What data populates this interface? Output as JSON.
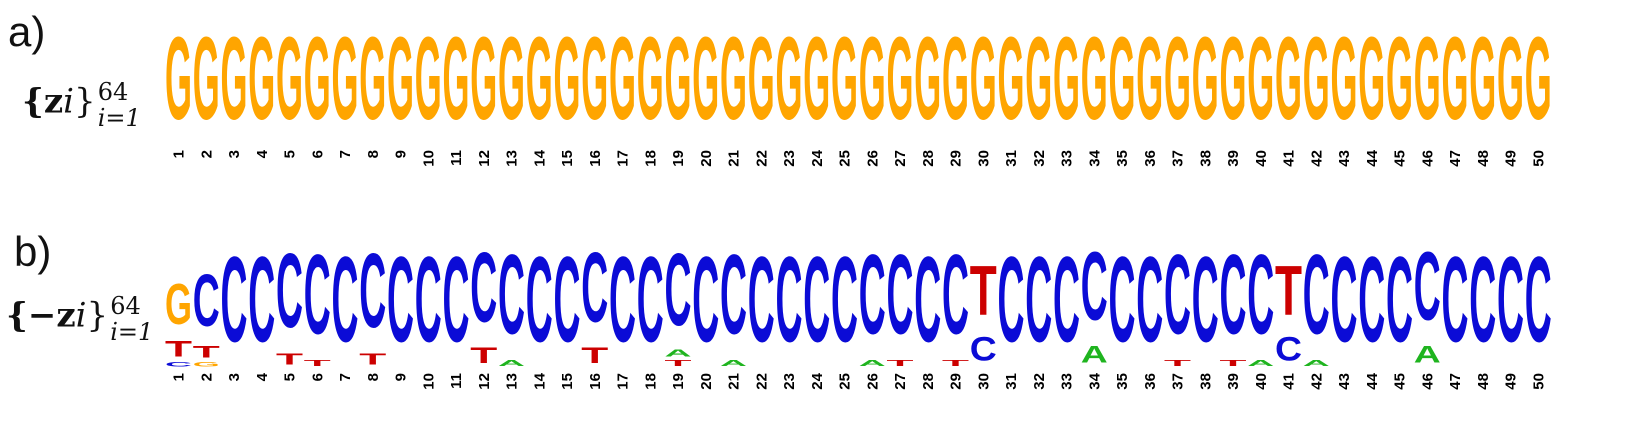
{
  "panels": {
    "a": {
      "letter": "a)",
      "label_main": "{z",
      "label_idx": "i",
      "label_close": "}",
      "label_sup": "64",
      "label_sub": "i=1"
    },
    "b": {
      "letter": "b)",
      "label_main": "{−z",
      "label_idx": "i",
      "label_close": "}",
      "label_sup": "64",
      "label_sub": "i=1"
    }
  },
  "colors": {
    "A": "#1fb41f",
    "C": "#0b0bd6",
    "G": "#ffa500",
    "T": "#cc0000"
  },
  "chart_data": [
    {
      "type": "sequence-logo",
      "panel": "a",
      "positions": [
        "1",
        "2",
        "3",
        "4",
        "5",
        "6",
        "7",
        "8",
        "9",
        "10",
        "11",
        "12",
        "13",
        "14",
        "15",
        "16",
        "17",
        "18",
        "19",
        "20",
        "21",
        "22",
        "23",
        "24",
        "25",
        "26",
        "27",
        "28",
        "29",
        "30",
        "31",
        "32",
        "33",
        "34",
        "35",
        "36",
        "37",
        "38",
        "39",
        "40",
        "41",
        "42",
        "43",
        "44",
        "45",
        "46",
        "47",
        "48",
        "49",
        "50"
      ],
      "stacks": [
        [
          [
            "G",
            1.0
          ]
        ],
        [
          [
            "G",
            1.0
          ]
        ],
        [
          [
            "G",
            1.0
          ]
        ],
        [
          [
            "G",
            1.0
          ]
        ],
        [
          [
            "G",
            1.0
          ]
        ],
        [
          [
            "G",
            1.0
          ]
        ],
        [
          [
            "G",
            1.0
          ]
        ],
        [
          [
            "G",
            1.0
          ]
        ],
        [
          [
            "G",
            1.0
          ]
        ],
        [
          [
            "G",
            1.0
          ]
        ],
        [
          [
            "G",
            1.0
          ]
        ],
        [
          [
            "G",
            1.0
          ]
        ],
        [
          [
            "G",
            1.0
          ]
        ],
        [
          [
            "G",
            1.0
          ]
        ],
        [
          [
            "G",
            1.0
          ]
        ],
        [
          [
            "G",
            1.0
          ]
        ],
        [
          [
            "G",
            1.0
          ]
        ],
        [
          [
            "G",
            1.0
          ]
        ],
        [
          [
            "G",
            1.0
          ]
        ],
        [
          [
            "G",
            1.0
          ]
        ],
        [
          [
            "G",
            1.0
          ]
        ],
        [
          [
            "G",
            1.0
          ]
        ],
        [
          [
            "G",
            1.0
          ]
        ],
        [
          [
            "G",
            1.0
          ]
        ],
        [
          [
            "G",
            1.0
          ]
        ],
        [
          [
            "G",
            1.0
          ]
        ],
        [
          [
            "G",
            1.0
          ]
        ],
        [
          [
            "G",
            1.0
          ]
        ],
        [
          [
            "G",
            1.0
          ]
        ],
        [
          [
            "G",
            1.0
          ]
        ],
        [
          [
            "G",
            1.0
          ]
        ],
        [
          [
            "G",
            1.0
          ]
        ],
        [
          [
            "G",
            1.0
          ]
        ],
        [
          [
            "G",
            1.0
          ]
        ],
        [
          [
            "G",
            1.0
          ]
        ],
        [
          [
            "G",
            1.0
          ]
        ],
        [
          [
            "G",
            1.0
          ]
        ],
        [
          [
            "G",
            1.0
          ]
        ],
        [
          [
            "G",
            1.0
          ]
        ],
        [
          [
            "G",
            1.0
          ]
        ],
        [
          [
            "G",
            1.0
          ]
        ],
        [
          [
            "G",
            1.0
          ]
        ],
        [
          [
            "G",
            1.0
          ]
        ],
        [
          [
            "G",
            1.0
          ]
        ],
        [
          [
            "G",
            1.0
          ]
        ],
        [
          [
            "G",
            1.0
          ]
        ],
        [
          [
            "G",
            1.0
          ]
        ],
        [
          [
            "G",
            1.0
          ]
        ],
        [
          [
            "G",
            1.0
          ]
        ],
        [
          [
            "G",
            1.0
          ]
        ]
      ]
    },
    {
      "type": "sequence-logo",
      "panel": "b",
      "positions": [
        "1",
        "2",
        "3",
        "4",
        "5",
        "6",
        "7",
        "8",
        "9",
        "10",
        "11",
        "12",
        "13",
        "14",
        "15",
        "16",
        "17",
        "18",
        "19",
        "20",
        "21",
        "22",
        "23",
        "24",
        "25",
        "26",
        "27",
        "28",
        "29",
        "30",
        "31",
        "32",
        "33",
        "34",
        "35",
        "36",
        "37",
        "38",
        "39",
        "40",
        "41",
        "42",
        "43",
        "44",
        "45",
        "46",
        "47",
        "48",
        "49",
        "50"
      ],
      "stacks": [
        [
          [
            "C",
            0.05
          ],
          [
            "T",
            0.18
          ],
          [
            "G",
            0.47
          ]
        ],
        [
          [
            "G",
            0.05
          ],
          [
            "T",
            0.14
          ],
          [
            "C",
            0.61
          ]
        ],
        [
          [
            "C",
            1.0
          ]
        ],
        [
          [
            "C",
            1.0
          ]
        ],
        [
          [
            "T",
            0.13
          ],
          [
            "C",
            0.87
          ]
        ],
        [
          [
            "T",
            0.07
          ],
          [
            "C",
            0.93
          ]
        ],
        [
          [
            "C",
            1.0
          ]
        ],
        [
          [
            "T",
            0.13
          ],
          [
            "C",
            0.87
          ]
        ],
        [
          [
            "C",
            1.0
          ]
        ],
        [
          [
            "C",
            1.0
          ]
        ],
        [
          [
            "C",
            1.0
          ]
        ],
        [
          [
            "T",
            0.18
          ],
          [
            "C",
            0.82
          ]
        ],
        [
          [
            "A",
            0.07
          ],
          [
            "C",
            0.93
          ]
        ],
        [
          [
            "C",
            1.0
          ]
        ],
        [
          [
            "C",
            1.0
          ]
        ],
        [
          [
            "T",
            0.18
          ],
          [
            "C",
            0.82
          ]
        ],
        [
          [
            "C",
            1.0
          ]
        ],
        [
          [
            "C",
            1.0
          ]
        ],
        [
          [
            "T",
            0.07
          ],
          [
            "A",
            0.08
          ],
          [
            "C",
            0.85
          ]
        ],
        [
          [
            "C",
            1.0
          ]
        ],
        [
          [
            "A",
            0.07
          ],
          [
            "C",
            0.93
          ]
        ],
        [
          [
            "C",
            1.0
          ]
        ],
        [
          [
            "C",
            1.0
          ]
        ],
        [
          [
            "C",
            1.0
          ]
        ],
        [
          [
            "C",
            1.0
          ]
        ],
        [
          [
            "A",
            0.07
          ],
          [
            "C",
            0.93
          ]
        ],
        [
          [
            "T",
            0.07
          ],
          [
            "C",
            0.93
          ]
        ],
        [
          [
            "C",
            1.0
          ]
        ],
        [
          [
            "T",
            0.07
          ],
          [
            "C",
            0.93
          ]
        ],
        [
          [
            "C",
            0.28
          ],
          [
            "T",
            0.58
          ]
        ],
        [
          [
            "C",
            1.0
          ]
        ],
        [
          [
            "C",
            1.0
          ]
        ],
        [
          [
            "C",
            1.0
          ]
        ],
        [
          [
            "A",
            0.2
          ],
          [
            "C",
            0.8
          ]
        ],
        [
          [
            "C",
            1.0
          ]
        ],
        [
          [
            "C",
            1.0
          ]
        ],
        [
          [
            "T",
            0.07
          ],
          [
            "C",
            0.93
          ]
        ],
        [
          [
            "C",
            1.0
          ]
        ],
        [
          [
            "T",
            0.07
          ],
          [
            "C",
            0.93
          ]
        ],
        [
          [
            "A",
            0.07
          ],
          [
            "C",
            0.93
          ]
        ],
        [
          [
            "C",
            0.28
          ],
          [
            "T",
            0.58
          ]
        ],
        [
          [
            "A",
            0.07
          ],
          [
            "C",
            0.93
          ]
        ],
        [
          [
            "C",
            1.0
          ]
        ],
        [
          [
            "C",
            1.0
          ]
        ],
        [
          [
            "C",
            1.0
          ]
        ],
        [
          [
            "A",
            0.2
          ],
          [
            "C",
            0.8
          ]
        ],
        [
          [
            "C",
            1.0
          ]
        ],
        [
          [
            "C",
            1.0
          ]
        ],
        [
          [
            "C",
            1.0
          ]
        ],
        [
          [
            "C",
            1.0
          ]
        ]
      ]
    }
  ]
}
